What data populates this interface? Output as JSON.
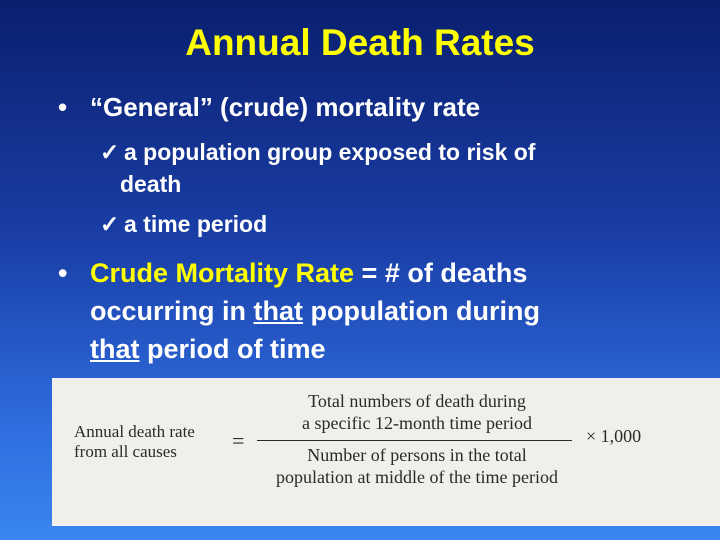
{
  "slide": {
    "title": "Annual Death Rates",
    "bullet1": {
      "marker": "•",
      "text": "“General” (crude) mortality rate",
      "subitems": [
        {
          "check": "ü",
          "line1": "a population group exposed to risk of",
          "line2": "death"
        },
        {
          "check": "ü",
          "line1": "a time period"
        }
      ]
    },
    "bullet2": {
      "marker": "•",
      "highlight": "Crude Mortality Rate",
      "text1": " = # of deaths",
      "line2_pre": "occurring in ",
      "line2_u": "that",
      "line2_post": " population during",
      "line3_u": "that",
      "line3_post": " period of time"
    },
    "formula": {
      "lhs_line1": "Annual death rate",
      "lhs_line2": "from all causes",
      "equals": "=",
      "numerator_line1": "Total numbers of death during",
      "numerator_line2": "a specific 12-month time period",
      "denominator_line1": "Number of persons in the total",
      "denominator_line2": "population at middle of the time period",
      "multiplier": "× 1,000"
    }
  }
}
